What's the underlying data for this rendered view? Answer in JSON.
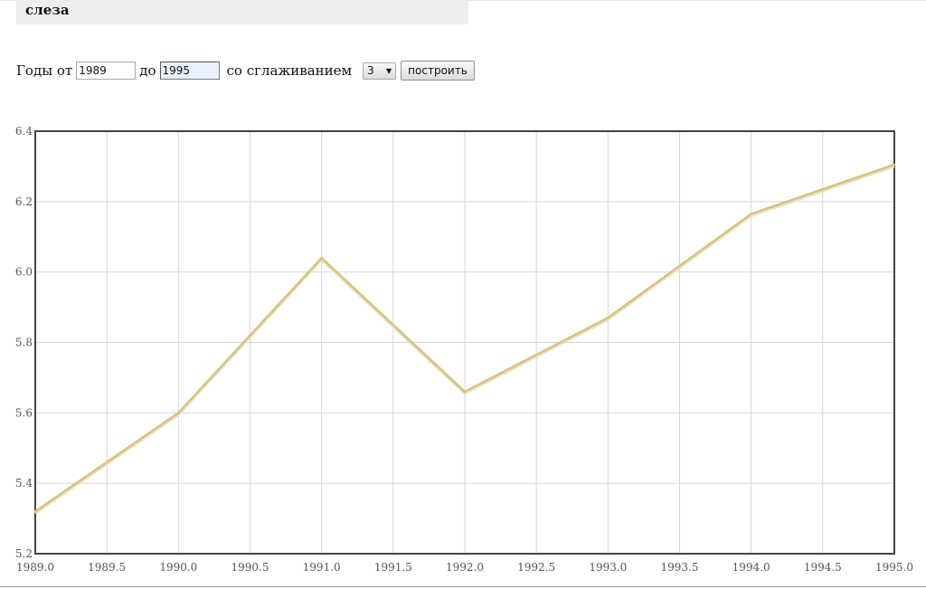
{
  "header": {
    "title": "слеза"
  },
  "controls": {
    "years_from_label": "Годы от",
    "year_from": "1989",
    "to_label": "до",
    "year_to": "1995",
    "smoothing_label": "со сглаживанием",
    "smoothing_value": "3",
    "build_label": "построить"
  },
  "chart_data": {
    "type": "line",
    "title": "",
    "xlabel": "",
    "ylabel": "",
    "xlim": [
      1989.0,
      1995.0
    ],
    "ylim": [
      5.2,
      6.4
    ],
    "x_ticks": [
      "1989.0",
      "1989.5",
      "1990.0",
      "1990.5",
      "1991.0",
      "1991.5",
      "1992.0",
      "1992.5",
      "1993.0",
      "1993.5",
      "1994.0",
      "1994.5",
      "1995.0"
    ],
    "y_ticks": [
      "5.2",
      "5.4",
      "5.6",
      "5.8",
      "6.0",
      "6.2",
      "6.4"
    ],
    "grid": true,
    "series": [
      {
        "color": "#d8c17a",
        "x": [
          1989,
          1990,
          1991,
          1992,
          1993,
          1994,
          1995
        ],
        "y": [
          5.32,
          5.6,
          6.04,
          5.66,
          5.87,
          6.165,
          6.305
        ]
      }
    ]
  }
}
